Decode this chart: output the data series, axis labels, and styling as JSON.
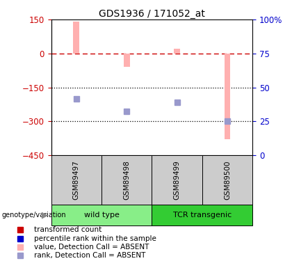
{
  "title": "GDS1936 / 171052_at",
  "samples": [
    "GSM89497",
    "GSM89498",
    "GSM89499",
    "GSM89500"
  ],
  "bar_values": [
    140,
    -60,
    20,
    -380
  ],
  "rank_values": [
    -200,
    -255,
    -215,
    -300
  ],
  "bar_color": "#FFB0B0",
  "rank_color": "#9999CC",
  "ylim": [
    -450,
    150
  ],
  "yticks_left": [
    150,
    0,
    -150,
    -300,
    -450
  ],
  "yticks_right": [
    100,
    75,
    50,
    25,
    0
  ],
  "hline_y": 0,
  "dotted_lines": [
    -150,
    -300
  ],
  "groups": [
    {
      "label": "wild type",
      "samples": [
        0,
        1
      ],
      "color": "#88EE88"
    },
    {
      "label": "TCR transgenic",
      "samples": [
        2,
        3
      ],
      "color": "#33CC33"
    }
  ],
  "genotype_label": "genotype/variation",
  "legend_items": [
    {
      "label": "transformed count",
      "color": "#CC0000"
    },
    {
      "label": "percentile rank within the sample",
      "color": "#0000CC"
    },
    {
      "label": "value, Detection Call = ABSENT",
      "color": "#FFB0B0"
    },
    {
      "label": "rank, Detection Call = ABSENT",
      "color": "#9999CC"
    }
  ],
  "background_color": "#ffffff",
  "bar_width": 0.12,
  "rank_markersize": 6,
  "left_axis_color": "#CC0000",
  "right_axis_color": "#0000CC"
}
